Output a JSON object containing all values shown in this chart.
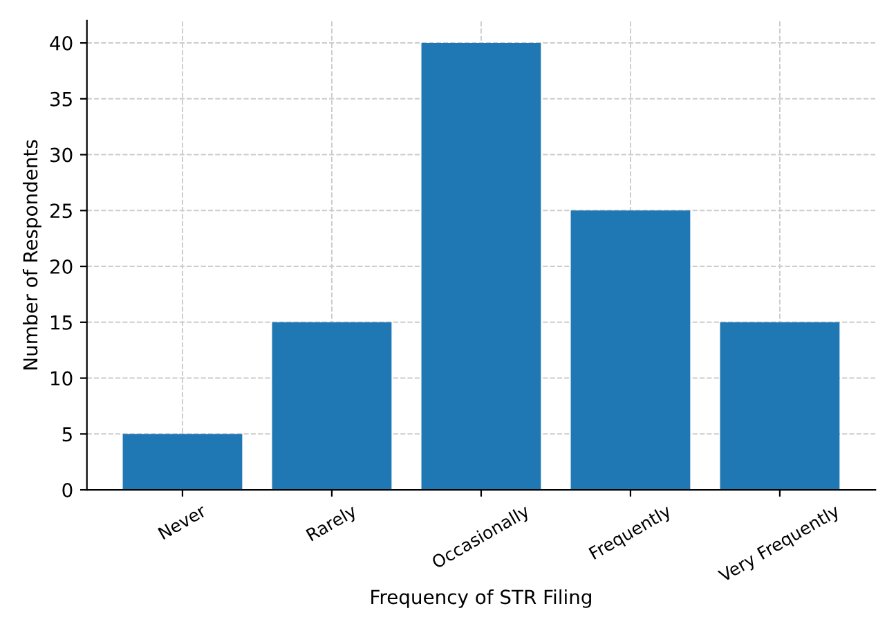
{
  "chart_data": {
    "type": "bar",
    "xlabel": "Frequency of STR Filing",
    "ylabel": "Number of Respondents",
    "categories": [
      "Never",
      "Rarely",
      "Occasionally",
      "Frequently",
      "Very Frequently"
    ],
    "values": [
      5,
      15,
      40,
      25,
      15
    ],
    "color": "#1f77b4",
    "ylim": [
      0,
      42
    ],
    "yticks": [
      0,
      5,
      10,
      15,
      20,
      25,
      30,
      35,
      40
    ],
    "grid": true
  }
}
